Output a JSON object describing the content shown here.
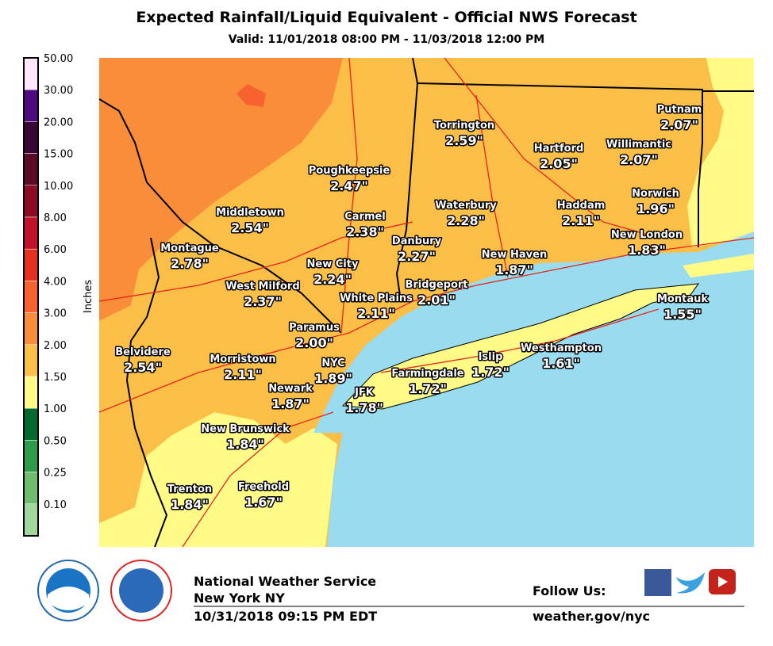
{
  "header": {
    "title": "Expected Rainfall/Liquid Equivalent - Official NWS Forecast",
    "subtitle": "Valid: 11/01/2018 08:00 PM - 11/03/2018 12:00 PM"
  },
  "legend": {
    "title": "Inches",
    "bands": [
      {
        "label": "50.00",
        "color": "#ffe6fb"
      },
      {
        "label": "30.00",
        "color": "#4e0a7e"
      },
      {
        "label": "20.00",
        "color": "#3a0634"
      },
      {
        "label": "15.00",
        "color": "#5c0a28"
      },
      {
        "label": "10.00",
        "color": "#8c0a22"
      },
      {
        "label": "8.00",
        "color": "#c3112b"
      },
      {
        "label": "6.00",
        "color": "#e5321f"
      },
      {
        "label": "4.00",
        "color": "#f7622f"
      },
      {
        "label": "3.00",
        "color": "#f98d3a"
      },
      {
        "label": "2.00",
        "color": "#fbbf47"
      },
      {
        "label": "1.50",
        "color": "#fffb86"
      },
      {
        "label": "1.00",
        "color": "#006b2e"
      },
      {
        "label": "0.50",
        "color": "#2e9c4a"
      },
      {
        "label": "0.25",
        "color": "#6dbd6e"
      },
      {
        "label": "0.10",
        "color": "#a0d89a"
      }
    ],
    "base_color": "#cceecc"
  },
  "cities": [
    {
      "name": "Putnam",
      "value": "2.07\""
    },
    {
      "name": "Torrington",
      "value": "2.59\""
    },
    {
      "name": "Hartford",
      "value": "2.05\""
    },
    {
      "name": "Willimantic",
      "value": "2.07\""
    },
    {
      "name": "Poughkeepsie",
      "value": "2.47\""
    },
    {
      "name": "Waterbury",
      "value": "2.28\""
    },
    {
      "name": "Haddam",
      "value": "2.11\""
    },
    {
      "name": "Norwich",
      "value": "1.96\""
    },
    {
      "name": "Middletown",
      "value": "2.54\""
    },
    {
      "name": "Carmel",
      "value": "2.38\""
    },
    {
      "name": "Danbury",
      "value": "2.27\""
    },
    {
      "name": "New London",
      "value": "1.83\""
    },
    {
      "name": "Montague",
      "value": "2.78\""
    },
    {
      "name": "New City",
      "value": "2.24\""
    },
    {
      "name": "New Haven",
      "value": "1.87\""
    },
    {
      "name": "West Milford",
      "value": "2.37\""
    },
    {
      "name": "Bridgeport",
      "value": "2.01\""
    },
    {
      "name": "White Plains",
      "value": "2.11\""
    },
    {
      "name": "Montauk",
      "value": "1.55\""
    },
    {
      "name": "Paramus",
      "value": "2.00\""
    },
    {
      "name": "Belvidere",
      "value": "2.54\""
    },
    {
      "name": "Morristown",
      "value": "2.11\""
    },
    {
      "name": "NYC",
      "value": "1.89\""
    },
    {
      "name": "Islip",
      "value": "1.72\""
    },
    {
      "name": "Westhampton",
      "value": "1.61\""
    },
    {
      "name": "Farmingdale",
      "value": "1.72\""
    },
    {
      "name": "Newark",
      "value": "1.87\""
    },
    {
      "name": "JFK",
      "value": "1.78\""
    },
    {
      "name": "New Brunswick",
      "value": "1.84\""
    },
    {
      "name": "Trenton",
      "value": "1.84\""
    },
    {
      "name": "Freehold",
      "value": "1.67\""
    }
  ],
  "footer": {
    "office": "National Weather Service",
    "location": "New York NY",
    "issued": "10/31/2018 09:15 PM EDT",
    "follow": "Follow Us:",
    "url": "weather.gov/nyc"
  }
}
